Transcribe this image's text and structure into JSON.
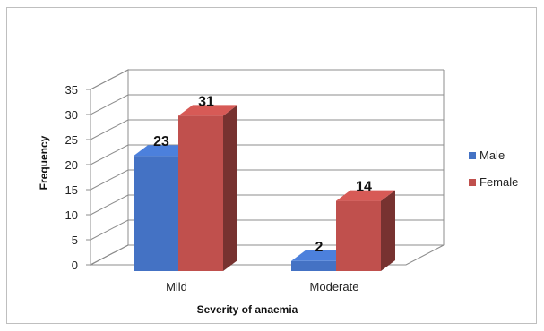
{
  "chart_data": {
    "type": "bar",
    "title": "",
    "xlabel": "Severity of anaemia",
    "ylabel": "Frequency",
    "categories": [
      "Mild",
      "Moderate"
    ],
    "series": [
      {
        "name": "Male",
        "values": [
          23,
          2
        ],
        "color": "#4472c4"
      },
      {
        "name": "Female",
        "values": [
          31,
          14
        ],
        "color": "#c0504d"
      }
    ],
    "yticks": [
      "0",
      "5",
      "10",
      "15",
      "20",
      "25",
      "30",
      "35"
    ],
    "ylim": [
      0,
      35
    ],
    "grid": true,
    "legend": "right",
    "style": "3d-clustered-column"
  }
}
